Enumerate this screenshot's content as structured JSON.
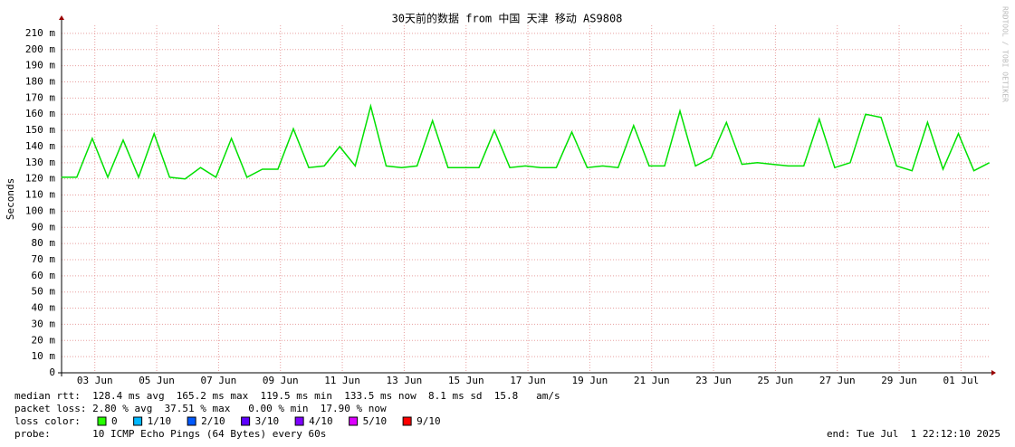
{
  "chart_data": {
    "type": "line",
    "title": "30天前的数据 from 中国 天津 移动 AS9808",
    "y_label": "Seconds",
    "watermark": "RRDTOOL / TOBI OETIKER",
    "x": [
      "2025-06-01 22:00",
      "2025-06-02 10:00",
      "2025-06-02 22:00",
      "2025-06-03 10:00",
      "2025-06-03 22:00",
      "2025-06-04 10:00",
      "2025-06-04 22:00",
      "2025-06-05 10:00",
      "2025-06-05 22:00",
      "2025-06-06 10:00",
      "2025-06-06 22:00",
      "2025-06-07 10:00",
      "2025-06-07 22:00",
      "2025-06-08 10:00",
      "2025-06-08 22:00",
      "2025-06-09 10:00",
      "2025-06-09 22:00",
      "2025-06-10 10:00",
      "2025-06-10 22:00",
      "2025-06-11 10:00",
      "2025-06-11 22:00",
      "2025-06-12 10:00",
      "2025-06-12 22:00",
      "2025-06-13 10:00",
      "2025-06-13 22:00",
      "2025-06-14 10:00",
      "2025-06-14 22:00",
      "2025-06-15 10:00",
      "2025-06-15 22:00",
      "2025-06-16 10:00",
      "2025-06-16 22:00",
      "2025-06-17 10:00",
      "2025-06-17 22:00",
      "2025-06-18 10:00",
      "2025-06-18 22:00",
      "2025-06-19 10:00",
      "2025-06-19 22:00",
      "2025-06-20 10:00",
      "2025-06-20 22:00",
      "2025-06-21 10:00",
      "2025-06-21 22:00",
      "2025-06-22 10:00",
      "2025-06-22 22:00",
      "2025-06-23 10:00",
      "2025-06-23 22:00",
      "2025-06-24 10:00",
      "2025-06-24 22:00",
      "2025-06-25 10:00",
      "2025-06-25 22:00",
      "2025-06-26 10:00",
      "2025-06-26 22:00",
      "2025-06-27 10:00",
      "2025-06-27 22:00",
      "2025-06-28 10:00",
      "2025-06-28 22:00",
      "2025-06-29 10:00",
      "2025-06-29 22:00",
      "2025-06-30 10:00",
      "2025-06-30 22:00",
      "2025-07-01 10:00",
      "2025-07-01 22:00"
    ],
    "series": [
      {
        "color": "#00e000",
        "values": [
          121,
          121,
          145,
          121,
          144,
          121,
          148,
          121,
          120,
          127,
          121,
          145,
          121,
          126,
          126,
          151,
          127,
          128,
          140,
          128,
          165,
          128,
          127,
          128,
          156,
          127,
          127,
          127,
          150,
          127,
          128,
          127,
          127,
          149,
          127,
          128,
          127,
          153,
          128,
          128,
          162,
          128,
          133,
          155,
          129,
          130,
          129,
          128,
          128,
          157,
          127,
          130,
          160,
          158,
          128,
          125,
          155,
          126,
          148,
          125,
          130
        ]
      }
    ],
    "xlim": [
      "2025-06-01 22:12",
      "2025-07-01 22:12"
    ],
    "xticks": [
      {
        "value": "2025-06-03 00:00",
        "label": "03 Jun"
      },
      {
        "value": "2025-06-05 00:00",
        "label": "05 Jun"
      },
      {
        "value": "2025-06-07 00:00",
        "label": "07 Jun"
      },
      {
        "value": "2025-06-09 00:00",
        "label": "09 Jun"
      },
      {
        "value": "2025-06-11 00:00",
        "label": "11 Jun"
      },
      {
        "value": "2025-06-13 00:00",
        "label": "13 Jun"
      },
      {
        "value": "2025-06-15 00:00",
        "label": "15 Jun"
      },
      {
        "value": "2025-06-17 00:00",
        "label": "17 Jun"
      },
      {
        "value": "2025-06-19 00:00",
        "label": "19 Jun"
      },
      {
        "value": "2025-06-21 00:00",
        "label": "21 Jun"
      },
      {
        "value": "2025-06-23 00:00",
        "label": "23 Jun"
      },
      {
        "value": "2025-06-25 00:00",
        "label": "25 Jun"
      },
      {
        "value": "2025-06-27 00:00",
        "label": "27 Jun"
      },
      {
        "value": "2025-06-29 00:00",
        "label": "29 Jun"
      },
      {
        "value": "2025-07-01 00:00",
        "label": "01 Jul"
      }
    ],
    "ylim": [
      0,
      215
    ],
    "yticks": [
      0,
      {
        "value": 10,
        "label": "10 m"
      },
      {
        "value": 20,
        "label": "20 m"
      },
      {
        "value": 30,
        "label": "30 m"
      },
      {
        "value": 40,
        "label": "40 m"
      },
      {
        "value": 50,
        "label": "50 m"
      },
      {
        "value": 60,
        "label": "60 m"
      },
      {
        "value": 70,
        "label": "70 m"
      },
      {
        "value": 80,
        "label": "80 m"
      },
      {
        "value": 90,
        "label": "90 m"
      },
      {
        "value": 100,
        "label": "100 m"
      },
      {
        "value": 110,
        "label": "110 m"
      },
      {
        "value": 120,
        "label": "120 m"
      },
      {
        "value": 130,
        "label": "130 m"
      },
      {
        "value": 140,
        "label": "140 m"
      },
      {
        "value": 150,
        "label": "150 m"
      },
      {
        "value": 160,
        "label": "160 m"
      },
      {
        "value": 170,
        "label": "170 m"
      },
      {
        "value": 180,
        "label": "180 m"
      },
      {
        "value": 190,
        "label": "190 m"
      },
      {
        "value": 200,
        "label": "200 m"
      },
      {
        "value": 210,
        "label": "210 m"
      }
    ],
    "grid": true,
    "stats": [
      "median rtt:  128.4 ms avg  165.2 ms max  119.5 ms min  133.5 ms now  8.1 ms sd  15.8   am/s",
      "packet loss: 2.80 % avg  37.51 % max   0.00 % min  17.90 % now"
    ],
    "loss_color_label": "loss color:",
    "loss_colors": [
      {
        "label": "0",
        "color": "#26ff00"
      },
      {
        "label": "1/10",
        "color": "#00b8ff"
      },
      {
        "label": "2/10",
        "color": "#0059ff"
      },
      {
        "label": "3/10",
        "color": "#5e00ff"
      },
      {
        "label": "4/10",
        "color": "#7e00ff"
      },
      {
        "label": "5/10",
        "color": "#dd00ff"
      },
      {
        "label": "9/10",
        "color": "#ff0000"
      }
    ],
    "probe": "probe:       10 ICMP Echo Pings (64 Bytes) every 60s",
    "end": "end: Tue Jul  1 22:12:10 2025"
  }
}
